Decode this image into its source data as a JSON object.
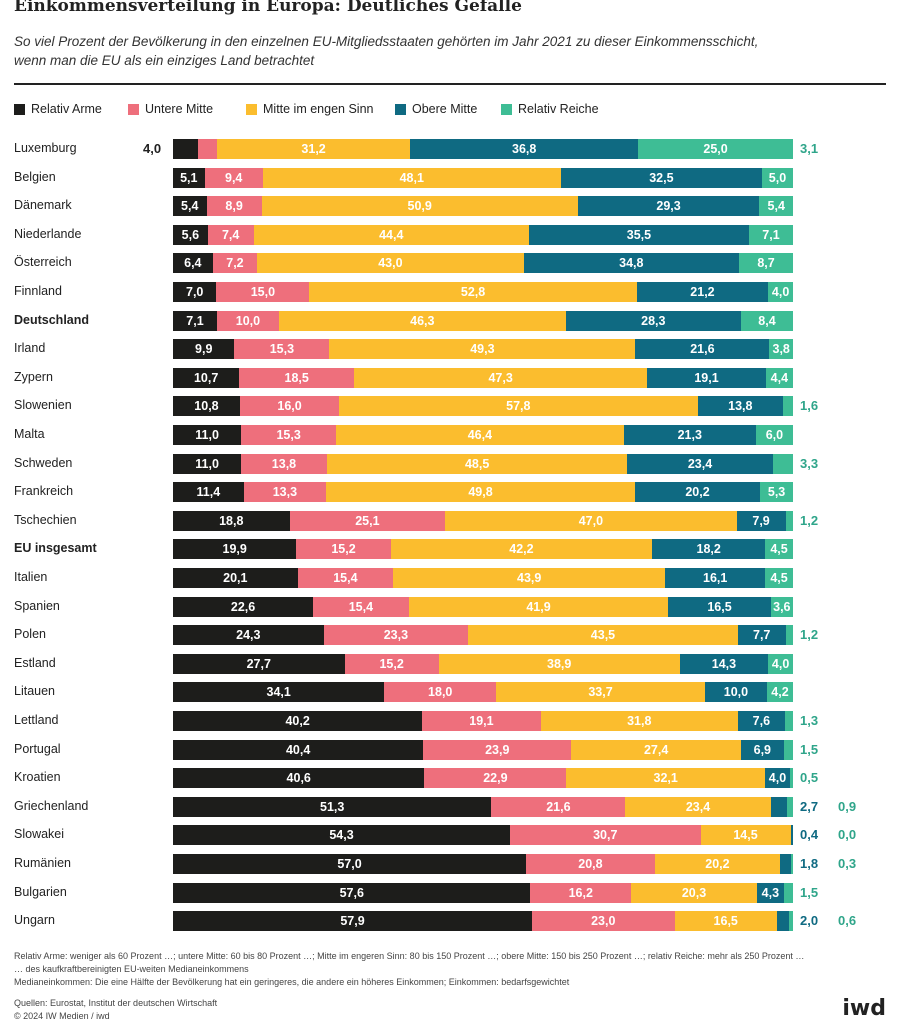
{
  "title": "Einkommensverteilung in Europa: Deutliches Gefälle",
  "subtitle_lines": [
    "So viel Prozent der Bevölkerung in den einzelnen EU-Mitgliedsstaaten gehörten im Jahr 2021 zu dieser Einkommensschicht,",
    "wenn man die EU als ein einziges Land betrachtet"
  ],
  "colors": {
    "relativ_arme": "#1d1d1b",
    "untere_mitte": "#ee6f7c",
    "mitte_eng": "#fbbd2e",
    "obere_mitte": "#0f6a82",
    "relativ_reiche": "#3ebd95",
    "external_label": "#2fa58a"
  },
  "chart_data": {
    "type": "bar",
    "orientation": "horizontal",
    "stacked": true,
    "percent_total": 100,
    "legend_placement": "top",
    "series_names": [
      "Relativ Arme",
      "Untere Mitte",
      "Mitte im engen Sinn",
      "Obere Mitte",
      "Relativ Reiche"
    ],
    "categories": [
      "Luxemburg",
      "Belgien",
      "Dänemark",
      "Niederlande",
      "Österreich",
      "Finnland",
      "Deutschland",
      "Irland",
      "Zypern",
      "Slowenien",
      "Malta",
      "Schweden",
      "Frankreich",
      "Tschechien",
      "EU insgesamt",
      "Italien",
      "Spanien",
      "Polen",
      "Estland",
      "Litauen",
      "Lettland",
      "Portugal",
      "Kroatien",
      "Griechenland",
      "Slowakei",
      "Rumänien",
      "Bulgarien",
      "Ungarn"
    ],
    "bold_categories": [
      "Deutschland",
      "EU insgesamt"
    ],
    "rows": [
      {
        "label": "Luxemburg",
        "values": [
          4.0,
          3.1,
          31.2,
          36.8,
          25.0
        ],
        "labels": [
          "4,0",
          "3,1",
          "31,2",
          "36,8",
          "25,0"
        ]
      },
      {
        "label": "Belgien",
        "values": [
          5.1,
          9.4,
          48.1,
          32.5,
          5.0
        ],
        "labels": [
          "5,1",
          "9,4",
          "48,1",
          "32,5",
          "5,0"
        ]
      },
      {
        "label": "Dänemark",
        "values": [
          5.4,
          8.9,
          50.9,
          29.3,
          5.4
        ],
        "labels": [
          "5,4",
          "8,9",
          "50,9",
          "29,3",
          "5,4"
        ]
      },
      {
        "label": "Niederlande",
        "values": [
          5.6,
          7.4,
          44.4,
          35.5,
          7.1
        ],
        "labels": [
          "5,6",
          "7,4",
          "44,4",
          "35,5",
          "7,1"
        ]
      },
      {
        "label": "Österreich",
        "values": [
          6.4,
          7.2,
          43.0,
          34.8,
          8.7
        ],
        "labels": [
          "6,4",
          "7,2",
          "43,0",
          "34,8",
          "8,7"
        ]
      },
      {
        "label": "Finnland",
        "values": [
          7.0,
          15.0,
          52.8,
          21.2,
          4.0
        ],
        "labels": [
          "7,0",
          "15,0",
          "52,8",
          "21,2",
          "4,0"
        ]
      },
      {
        "label": "Deutschland",
        "values": [
          7.1,
          10.0,
          46.3,
          28.3,
          8.4
        ],
        "labels": [
          "7,1",
          "10,0",
          "46,3",
          "28,3",
          "8,4"
        ]
      },
      {
        "label": "Irland",
        "values": [
          9.9,
          15.3,
          49.3,
          21.6,
          3.8
        ],
        "labels": [
          "9,9",
          "15,3",
          "49,3",
          "21,6",
          "3,8"
        ]
      },
      {
        "label": "Zypern",
        "values": [
          10.7,
          18.5,
          47.3,
          19.1,
          4.4
        ],
        "labels": [
          "10,7",
          "18,5",
          "47,3",
          "19,1",
          "4,4"
        ]
      },
      {
        "label": "Slowenien",
        "values": [
          10.8,
          16.0,
          57.8,
          13.8,
          1.6
        ],
        "labels": [
          "10,8",
          "16,0",
          "57,8",
          "13,8",
          "1,6"
        ]
      },
      {
        "label": "Malta",
        "values": [
          11.0,
          15.3,
          46.4,
          21.3,
          6.0
        ],
        "labels": [
          "11,0",
          "15,3",
          "46,4",
          "21,3",
          "6,0"
        ]
      },
      {
        "label": "Schweden",
        "values": [
          11.0,
          13.8,
          48.5,
          23.4,
          3.3
        ],
        "labels": [
          "11,0",
          "13,8",
          "48,5",
          "23,4",
          "3,3"
        ]
      },
      {
        "label": "Frankreich",
        "values": [
          11.4,
          13.3,
          49.8,
          20.2,
          5.3
        ],
        "labels": [
          "11,4",
          "13,3",
          "49,8",
          "20,2",
          "5,3"
        ]
      },
      {
        "label": "Tschechien",
        "values": [
          18.8,
          25.1,
          47.0,
          7.9,
          1.2
        ],
        "labels": [
          "18,8",
          "25,1",
          "47,0",
          "7,9",
          "1,2"
        ]
      },
      {
        "label": "EU insgesamt",
        "values": [
          19.9,
          15.2,
          42.2,
          18.2,
          4.5
        ],
        "labels": [
          "19,9",
          "15,2",
          "42,2",
          "18,2",
          "4,5"
        ]
      },
      {
        "label": "Italien",
        "values": [
          20.1,
          15.4,
          43.9,
          16.1,
          4.5
        ],
        "labels": [
          "20,1",
          "15,4",
          "43,9",
          "16,1",
          "4,5"
        ]
      },
      {
        "label": "Spanien",
        "values": [
          22.6,
          15.4,
          41.9,
          16.5,
          3.6
        ],
        "labels": [
          "22,6",
          "15,4",
          "41,9",
          "16,5",
          "3,6"
        ]
      },
      {
        "label": "Polen",
        "values": [
          24.3,
          23.3,
          43.5,
          7.7,
          1.2
        ],
        "labels": [
          "24,3",
          "23,3",
          "43,5",
          "7,7",
          "1,2"
        ]
      },
      {
        "label": "Estland",
        "values": [
          27.7,
          15.2,
          38.9,
          14.3,
          4.0
        ],
        "labels": [
          "27,7",
          "15,2",
          "38,9",
          "14,3",
          "4,0"
        ]
      },
      {
        "label": "Litauen",
        "values": [
          34.1,
          18.0,
          33.7,
          10.0,
          4.2
        ],
        "labels": [
          "34,1",
          "18,0",
          "33,7",
          "10,0",
          "4,2"
        ]
      },
      {
        "label": "Lettland",
        "values": [
          40.2,
          19.1,
          31.8,
          7.6,
          1.3
        ],
        "labels": [
          "40,2",
          "19,1",
          "31,8",
          "7,6",
          "1,3"
        ]
      },
      {
        "label": "Portugal",
        "values": [
          40.4,
          23.9,
          27.4,
          6.9,
          1.5
        ],
        "labels": [
          "40,4",
          "23,9",
          "27,4",
          "6,9",
          "1,5"
        ]
      },
      {
        "label": "Kroatien",
        "values": [
          40.6,
          22.9,
          32.1,
          4.0,
          0.5
        ],
        "labels": [
          "40,6",
          "22,9",
          "32,1",
          "4,0",
          "0,5"
        ]
      },
      {
        "label": "Griechenland",
        "values": [
          51.3,
          21.6,
          23.4,
          2.7,
          0.9
        ],
        "labels": [
          "51,3",
          "21,6",
          "23,4",
          "2,7",
          "0,9"
        ]
      },
      {
        "label": "Slowakei",
        "values": [
          54.3,
          30.7,
          14.5,
          0.4,
          0.0
        ],
        "labels": [
          "54,3",
          "30,7",
          "14,5",
          "0,4",
          "0,0"
        ]
      },
      {
        "label": "Rumänien",
        "values": [
          57.0,
          20.8,
          20.2,
          1.8,
          0.3
        ],
        "labels": [
          "57,0",
          "20,8",
          "20,2",
          "1,8",
          "0,3"
        ]
      },
      {
        "label": "Bulgarien",
        "values": [
          57.6,
          16.2,
          20.3,
          4.3,
          1.5
        ],
        "labels": [
          "57,6",
          "16,2",
          "20,3",
          "4,3",
          "1,5"
        ]
      },
      {
        "label": "Ungarn",
        "values": [
          57.9,
          23.0,
          16.5,
          2.0,
          0.6
        ],
        "labels": [
          "57,9",
          "23,0",
          "16,5",
          "2,0",
          "0,6"
        ]
      }
    ]
  },
  "footnotes": [
    "Relativ Arme: weniger als 60 Prozent …; untere Mitte: 60 bis 80 Prozent …; Mitte im engeren Sinn: 80 bis 150 Prozent …; obere Mitte: 150 bis 250 Prozent …; relativ Reiche: mehr als 250 Prozent …",
    "… des kaufkraftbereinigten EU-weiten Medianeinkommens",
    "Medianeinkommen: Die eine Hälfte der Bevölkerung hat ein geringeres, die andere ein höheres Einkommen; Einkommen: bedarfsgewichtet"
  ],
  "sources": "Quellen: Eurostat, Institut der deutschen Wirtschaft",
  "copyright": "© 2024 IW Medien / iwd",
  "logo_text": "iwd"
}
